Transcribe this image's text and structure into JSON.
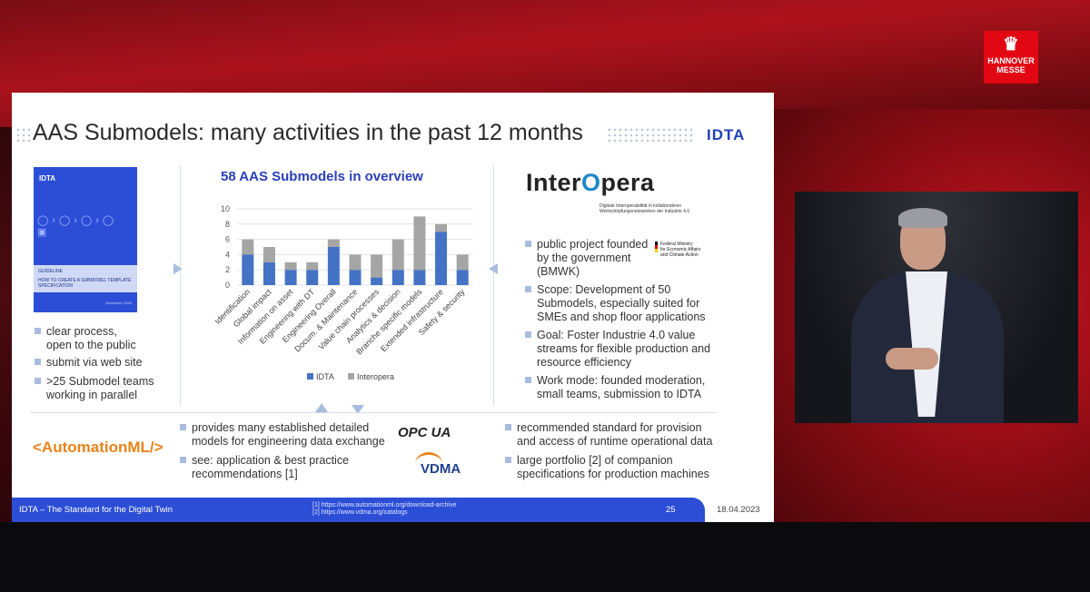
{
  "event": {
    "logo_line1": "HANNOVER",
    "logo_line2": "MESSE"
  },
  "slide": {
    "title": "AAS Submodels: many activities in the past 12 months",
    "logo": "IDTA",
    "guideline_cover": {
      "brand": "IDTA",
      "heading": "GUIDELINE",
      "subtitle": "HOW TO CREATE A SUBMODEL TEMPLATE SPECIFICATION",
      "date": "December 2022"
    },
    "left_bullets": [
      {
        "line1": "clear process,",
        "line2": "open to the public"
      },
      {
        "line1": "submit via web site",
        "line2": ""
      },
      {
        "line1": ">25 Submodel teams",
        "line2": "working in parallel"
      }
    ],
    "interopera": {
      "logo_pre": "Inter",
      "logo_o": "O",
      "logo_post": "pera",
      "tagline1": "Digitale Interoperabilität in kollaborativen",
      "tagline2": "Wertschöpfungsnetzwerken der Industrie 4.0",
      "ministry1": "Federal Ministry",
      "ministry2": "for Economic Affairs",
      "ministry3": "and Climate Action"
    },
    "right_bullets": [
      {
        "lines": [
          "public project founded",
          "by the government",
          "(BMWK)"
        ]
      },
      {
        "lines": [
          "Scope: Development of 50",
          "Submodels, especially suited for",
          "SMEs and shop floor applications"
        ]
      },
      {
        "lines": [
          "Goal: Foster Industrie 4.0 value",
          "streams for flexible production and",
          "resource efficiency"
        ]
      },
      {
        "lines": [
          "Work mode: founded moderation,",
          "small teams, submission to IDTA"
        ]
      }
    ],
    "automationml": {
      "logo": "<AutomationML/>",
      "bullets": [
        {
          "lines": [
            "provides many established detailed",
            "models for engineering data exchange"
          ]
        },
        {
          "lines": [
            "see: application & best practice",
            "recommendations [1]"
          ]
        }
      ]
    },
    "opcua": {
      "logo": "OPC UA",
      "vdma_logo": "VDMA",
      "bullets": [
        {
          "lines": [
            "recommended standard for provision",
            "and access of runtime operational data"
          ]
        },
        {
          "lines": [
            "large portfolio [2] of companion",
            "specifications for production machines"
          ]
        }
      ]
    },
    "footer": {
      "text": "IDTA – The Standard for the Digital Twin",
      "ref1": "[1]  https://www.automationml.org/download-archive",
      "ref2": "[2]  https://www.vdma.org/catalogs",
      "page": "25",
      "date": "18.04.2023"
    }
  },
  "chart_data": {
    "type": "bar",
    "stacked": true,
    "title": "58 AAS Submodels in overview",
    "categories": [
      "Identification",
      "Global impact",
      "Information on asset",
      "Engineering with DT",
      "Engineering Overall",
      "Docum. & Maintenance",
      "Value chain processes",
      "Analytics & decision",
      "Branche specific models",
      "Extended infrastructure",
      "Safety & security"
    ],
    "series": [
      {
        "name": "IDTA",
        "color": "#4472c4",
        "values": [
          4,
          3,
          2,
          2,
          5,
          2,
          1,
          2,
          2,
          7,
          2
        ]
      },
      {
        "name": "Interopera",
        "color": "#a5a5a5",
        "values": [
          2,
          2,
          1,
          1,
          1,
          2,
          3,
          4,
          7,
          1,
          2
        ]
      }
    ],
    "yticks": [
      "0",
      "2",
      "4",
      "6",
      "8",
      "10"
    ],
    "ylim": [
      0,
      10
    ],
    "legend": "bottom",
    "grid": true
  }
}
